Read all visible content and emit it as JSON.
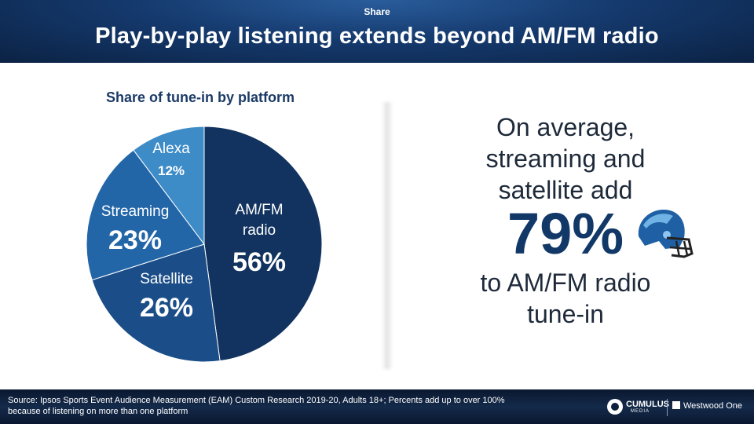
{
  "header": {
    "kicker": "Share",
    "title": "Play-by-play listening extends beyond AM/FM radio"
  },
  "chart_data": {
    "type": "pie",
    "title": "Share of tune-in by platform",
    "slices": [
      {
        "name": "AM/FM radio",
        "label_lines": [
          "AM/FM",
          "radio"
        ],
        "pct_label": "56%",
        "value": 56,
        "color": "#12335f"
      },
      {
        "name": "Satellite",
        "label_lines": [
          "Satellite"
        ],
        "pct_label": "26%",
        "value": 26,
        "color": "#1b4e88"
      },
      {
        "name": "Streaming",
        "label_lines": [
          "Streaming"
        ],
        "pct_label": "23%",
        "value": 23,
        "color": "#2366a8"
      },
      {
        "name": "Alexa",
        "label_lines": [
          "Alexa"
        ],
        "pct_label": "12%",
        "value": 12,
        "color": "#3d8cc8"
      }
    ]
  },
  "callout": {
    "line1": "On average,",
    "line2": "streaming and",
    "line3": "satellite add",
    "big_value": "79%",
    "line4": "to AM/FM radio",
    "line5": "tune-in",
    "icon": "football-helmet-icon"
  },
  "footer": {
    "source_line1": "Source: Ipsos Sports Event Audience Measurement (EAM) Custom Research 2019-20, Adults 18+; Percents add up to over 100%",
    "source_line2": "because of listening on more than one platform",
    "logo1_word": "CUMULUS",
    "logo1_sub": "MEDIA",
    "logo2": "Westwood One"
  }
}
